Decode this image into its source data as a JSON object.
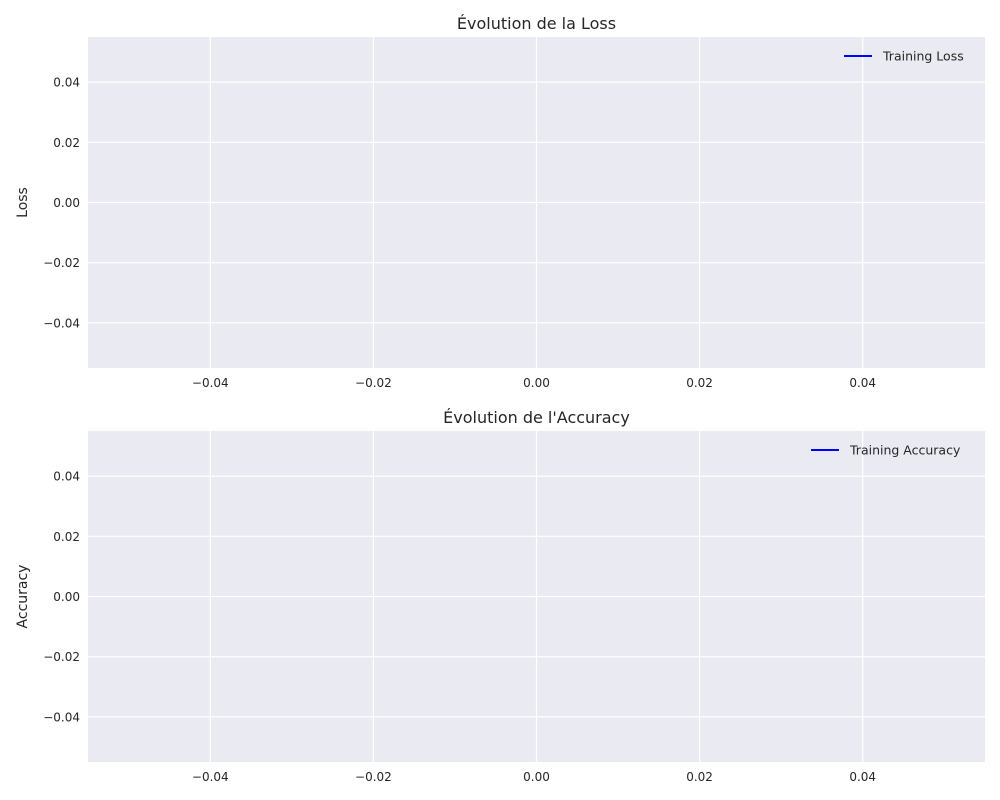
{
  "chart_data": [
    {
      "type": "line",
      "title": "Évolution de la Loss",
      "xlabel": "",
      "ylabel": "Loss",
      "xlim": [
        -0.055,
        0.055
      ],
      "ylim": [
        -0.055,
        0.055
      ],
      "xticks": [
        -0.04,
        -0.02,
        0.0,
        0.02,
        0.04
      ],
      "xtick_labels": [
        "−0.04",
        "−0.02",
        "0.00",
        "0.02",
        "0.04"
      ],
      "yticks": [
        0.04,
        0.02,
        0.0,
        -0.02,
        -0.04
      ],
      "ytick_labels": [
        "0.04",
        "0.02",
        "0.00",
        "−0.02",
        "−0.04"
      ],
      "grid": true,
      "legend_position": "top-right",
      "series": [
        {
          "name": "Training Loss",
          "color": "#0000ff",
          "x": [],
          "y": []
        }
      ]
    },
    {
      "type": "line",
      "title": "Évolution de l'Accuracy",
      "xlabel": "",
      "ylabel": "Accuracy",
      "xlim": [
        -0.055,
        0.055
      ],
      "ylim": [
        -0.055,
        0.055
      ],
      "xticks": [
        -0.04,
        -0.02,
        0.0,
        0.02,
        0.04
      ],
      "xtick_labels": [
        "−0.04",
        "−0.02",
        "0.00",
        "0.02",
        "0.04"
      ],
      "yticks": [
        0.04,
        0.02,
        0.0,
        -0.02,
        -0.04
      ],
      "ytick_labels": [
        "0.04",
        "0.02",
        "0.00",
        "−0.02",
        "−0.04"
      ],
      "grid": true,
      "legend_position": "top-right",
      "series": [
        {
          "name": "Training Accuracy",
          "color": "#0000ff",
          "x": [],
          "y": []
        }
      ]
    }
  ]
}
